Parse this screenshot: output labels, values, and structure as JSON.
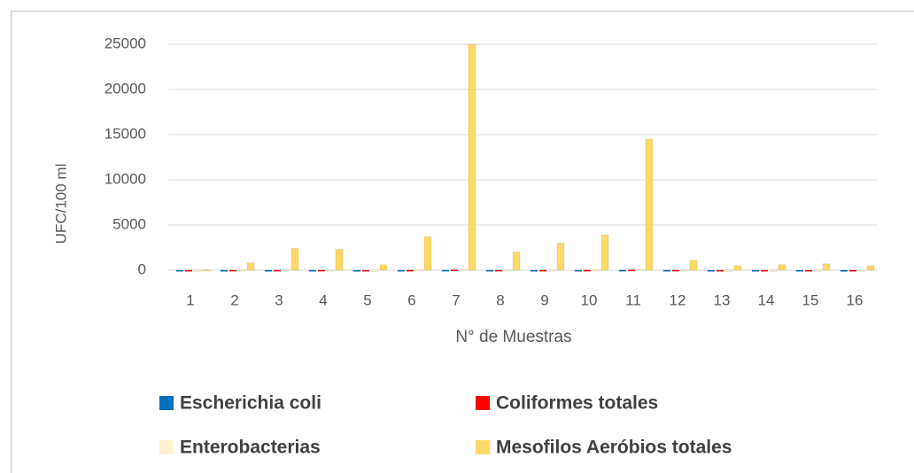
{
  "chart_data": {
    "type": "bar",
    "x_label": "N° de Muestras",
    "y_label": "UFC/100 ml",
    "categories": [
      "1",
      "2",
      "3",
      "4",
      "5",
      "6",
      "7",
      "8",
      "9",
      "10",
      "11",
      "12",
      "13",
      "14",
      "15",
      "16"
    ],
    "series": [
      {
        "name": "Escherichia coli",
        "color": "#0070c0",
        "values": [
          5,
          10,
          10,
          10,
          5,
          10,
          20,
          10,
          10,
          10,
          20,
          10,
          5,
          5,
          5,
          5
        ]
      },
      {
        "name": "Coliformes totales",
        "color": "#ff0000",
        "values": [
          10,
          20,
          20,
          20,
          10,
          20,
          50,
          20,
          20,
          20,
          40,
          20,
          10,
          10,
          10,
          10
        ]
      },
      {
        "name": "Enterobacterias",
        "color": "#fff2cc",
        "values": [
          20,
          40,
          40,
          40,
          20,
          40,
          100,
          40,
          40,
          40,
          80,
          40,
          20,
          20,
          20,
          20
        ]
      },
      {
        "name": "Mesofilos Aeróbios totales",
        "color": "#ffd966",
        "values": [
          50,
          800,
          2400,
          2300,
          600,
          3700,
          25000,
          2000,
          3000,
          3900,
          14500,
          1100,
          500,
          600,
          700,
          500
        ]
      }
    ],
    "ylim": [
      0,
      25000
    ],
    "yticks": [
      0,
      5000,
      10000,
      15000,
      20000,
      25000
    ],
    "grid": true,
    "legend": "bottom"
  }
}
